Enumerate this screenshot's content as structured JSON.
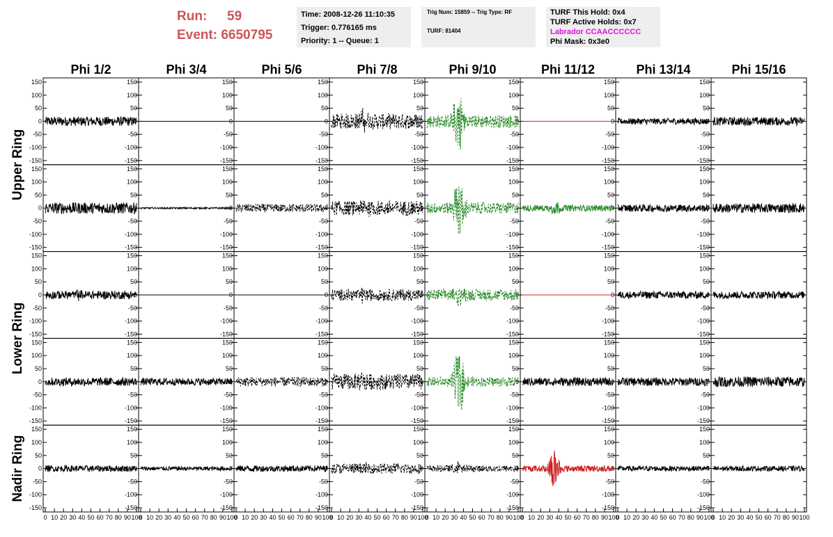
{
  "run": {
    "label": "Run:",
    "value": "59"
  },
  "event": {
    "label": "Event:",
    "value": "6650795"
  },
  "info1": {
    "time": "Time: 2008-12-26 11:10:35",
    "trigger": "Trigger: 0.776165 ms",
    "priority": "Priority: 1 -- Queue: 1"
  },
  "info2": {
    "trig": "Trig Num: 15859 -- Trig Type: RF",
    "turf": "TURF: 81404"
  },
  "info3": {
    "hold": "TURF This Hold: 0x4",
    "active": "TURF Active Holds: 0x7",
    "labrador": "Labrador CCAACCCCCC",
    "phimask": "Phi Mask: 0x3e0"
  },
  "colors": {
    "black": "#000000",
    "green": "#2a8a2a",
    "red": "#cc2222",
    "accent": "#cc5555",
    "magenta": "#e010e0"
  },
  "chart_data": {
    "type": "line",
    "columns": [
      "Phi 1/2",
      "Phi 3/4",
      "Phi 5/6",
      "Phi 7/8",
      "Phi 9/10",
      "Phi 11/12",
      "Phi 13/14",
      "Phi 15/16"
    ],
    "ring_labels": [
      "Upper Ring",
      "Lower Ring",
      "Nadir Ring"
    ],
    "xlim": [
      0,
      100
    ],
    "ylim": [
      -150,
      150
    ],
    "y_ticks": [
      150,
      100,
      50,
      0,
      -50,
      -100,
      -150
    ],
    "x_ticks": [
      0,
      10,
      20,
      30,
      40,
      50,
      60,
      70,
      80,
      90,
      100
    ],
    "grid": false,
    "rows": [
      {
        "cells": [
          {
            "style": "solid",
            "color": "black",
            "amp": 18,
            "burst": 0
          },
          {
            "style": "flat",
            "color": "black",
            "amp": 0,
            "burst": 0
          },
          {
            "style": "flat",
            "color": "black",
            "amp": 0,
            "burst": 0
          },
          {
            "style": "dashed",
            "color": "black",
            "amp": 30,
            "burst": 25
          },
          {
            "style": "dashed",
            "color": "green",
            "amp": 25,
            "burst": 120
          },
          {
            "style": "flat",
            "color": "red",
            "amp": 0,
            "burst": 0
          },
          {
            "style": "solid",
            "color": "black",
            "amp": 12,
            "burst": 0
          },
          {
            "style": "solid",
            "color": "black",
            "amp": 16,
            "burst": 0
          }
        ]
      },
      {
        "cells": [
          {
            "style": "solid",
            "color": "black",
            "amp": 22,
            "burst": 0
          },
          {
            "style": "solid",
            "color": "black",
            "amp": 3,
            "burst": 0
          },
          {
            "style": "dashed",
            "color": "black",
            "amp": 16,
            "burst": 0
          },
          {
            "style": "dashed",
            "color": "black",
            "amp": 28,
            "burst": 20
          },
          {
            "style": "dashed",
            "color": "green",
            "amp": 22,
            "burst": 110
          },
          {
            "style": "solid",
            "color": "green",
            "amp": 12,
            "burst": 25
          },
          {
            "style": "solid",
            "color": "black",
            "amp": 14,
            "burst": 0
          },
          {
            "style": "solid",
            "color": "black",
            "amp": 18,
            "burst": 0
          }
        ]
      },
      {
        "cells": [
          {
            "style": "solid",
            "color": "black",
            "amp": 16,
            "burst": 10
          },
          {
            "style": "flat",
            "color": "black",
            "amp": 0,
            "burst": 0
          },
          {
            "style": "flat",
            "color": "black",
            "amp": 0,
            "burst": 0
          },
          {
            "style": "dashed",
            "color": "black",
            "amp": 22,
            "burst": 15
          },
          {
            "style": "dashed",
            "color": "green",
            "amp": 22,
            "burst": 35
          },
          {
            "style": "flat",
            "color": "red",
            "amp": 0,
            "burst": 0
          },
          {
            "style": "solid",
            "color": "black",
            "amp": 14,
            "burst": 0
          },
          {
            "style": "solid",
            "color": "black",
            "amp": 14,
            "burst": 0
          }
        ]
      },
      {
        "cells": [
          {
            "style": "solid",
            "color": "black",
            "amp": 16,
            "burst": 0
          },
          {
            "style": "solid",
            "color": "black",
            "amp": 14,
            "burst": 0
          },
          {
            "style": "dashed",
            "color": "black",
            "amp": 18,
            "burst": 0
          },
          {
            "style": "dashed",
            "color": "black",
            "amp": 30,
            "burst": 20
          },
          {
            "style": "dashed",
            "color": "green",
            "amp": 18,
            "burst": 120
          },
          {
            "style": "solid",
            "color": "black",
            "amp": 16,
            "burst": 0
          },
          {
            "style": "solid",
            "color": "black",
            "amp": 16,
            "burst": 0
          },
          {
            "style": "solid",
            "color": "black",
            "amp": 20,
            "burst": 0
          }
        ]
      },
      {
        "cells": [
          {
            "style": "solid",
            "color": "black",
            "amp": 12,
            "burst": 0
          },
          {
            "style": "solid",
            "color": "black",
            "amp": 8,
            "burst": 0
          },
          {
            "style": "solid",
            "color": "black",
            "amp": 12,
            "burst": 0
          },
          {
            "style": "dashed",
            "color": "black",
            "amp": 20,
            "burst": 10
          },
          {
            "style": "dashed",
            "color": "black",
            "amp": 12,
            "burst": 25
          },
          {
            "style": "solid",
            "color": "red",
            "amp": 12,
            "burst": 80
          },
          {
            "style": "solid",
            "color": "black",
            "amp": 10,
            "burst": 0
          },
          {
            "style": "solid",
            "color": "black",
            "amp": 10,
            "burst": 0
          }
        ]
      }
    ]
  }
}
